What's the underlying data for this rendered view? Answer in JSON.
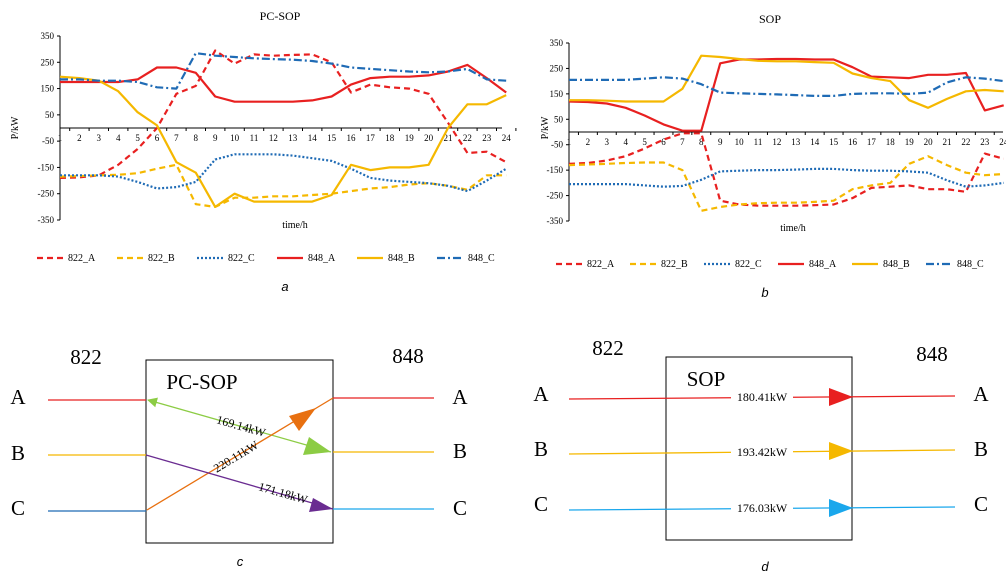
{
  "colors": {
    "red": "#e82020",
    "orange_yellow": "#f5b800",
    "blue": "#1f6bb5",
    "cyan": "#1aa7ec",
    "green": "#8ccc44",
    "purple": "#6a2c91",
    "dark_orange": "#e87010"
  },
  "chart_data": [
    {
      "type": "line",
      "title": "PC-SOP",
      "xlabel": "time/h",
      "ylabel": "P/kW",
      "ylim": [
        -350,
        350
      ],
      "yticks": [
        "350",
        "250",
        "150",
        "50",
        "-50",
        "-150",
        "-250",
        "-350"
      ],
      "x": [
        1,
        2,
        3,
        4,
        5,
        6,
        7,
        8,
        9,
        10,
        11,
        12,
        13,
        14,
        15,
        16,
        17,
        18,
        19,
        20,
        21,
        22,
        23,
        24
      ],
      "series": [
        {
          "name": "822_A",
          "style": "dash",
          "color": "#e82020",
          "values": [
            -190,
            -188,
            -180,
            -140,
            -80,
            0,
            130,
            160,
            295,
            245,
            280,
            275,
            278,
            280,
            250,
            135,
            165,
            155,
            150,
            130,
            20,
            -95,
            -90,
            -130
          ]
        },
        {
          "name": "822_B",
          "style": "dash",
          "color": "#f5b800",
          "values": [
            -185,
            -183,
            -180,
            -178,
            -172,
            -155,
            -140,
            -290,
            -300,
            -265,
            -265,
            -260,
            -260,
            -255,
            -250,
            -240,
            -230,
            -225,
            -215,
            -210,
            -220,
            -235,
            -180,
            -180
          ]
        },
        {
          "name": "822_C",
          "style": "dot",
          "color": "#1f6bb5",
          "values": [
            -180,
            -180,
            -180,
            -185,
            -205,
            -230,
            -225,
            -205,
            -120,
            -100,
            -100,
            -100,
            -105,
            -115,
            -125,
            -155,
            -190,
            -200,
            -205,
            -210,
            -220,
            -240,
            -200,
            -155
          ]
        },
        {
          "name": "848_A",
          "style": "solid",
          "color": "#e82020",
          "values": [
            175,
            175,
            175,
            175,
            185,
            230,
            230,
            210,
            120,
            100,
            100,
            100,
            100,
            105,
            120,
            165,
            190,
            195,
            195,
            200,
            215,
            240,
            190,
            135
          ]
        },
        {
          "name": "848_B",
          "style": "solid",
          "color": "#f5b800",
          "values": [
            195,
            190,
            180,
            140,
            60,
            10,
            -130,
            -170,
            -300,
            -250,
            -280,
            -280,
            -280,
            -280,
            -255,
            -140,
            -160,
            -150,
            -150,
            -140,
            0,
            90,
            90,
            125
          ]
        },
        {
          "name": "848_C",
          "style": "dashdot",
          "color": "#1f6bb5",
          "values": [
            185,
            185,
            180,
            180,
            175,
            155,
            150,
            285,
            275,
            270,
            265,
            262,
            260,
            255,
            245,
            230,
            225,
            220,
            215,
            212,
            215,
            225,
            185,
            180
          ]
        }
      ]
    },
    {
      "type": "line",
      "title": "SOP",
      "xlabel": "time/h",
      "ylabel": "P/kW",
      "ylim": [
        -350,
        350
      ],
      "yticks": [
        "350",
        "250",
        "150",
        "50",
        "-50",
        "-150",
        "-250",
        "-350"
      ],
      "x": [
        1,
        2,
        3,
        4,
        5,
        6,
        7,
        8,
        9,
        10,
        11,
        12,
        13,
        14,
        15,
        16,
        17,
        18,
        19,
        20,
        21,
        22,
        23,
        24
      ],
      "series": [
        {
          "name": "822_A",
          "style": "dash",
          "color": "#e82020",
          "values": [
            -125,
            -122,
            -112,
            -95,
            -65,
            -30,
            -5,
            -5,
            -270,
            -285,
            -290,
            -290,
            -290,
            -288,
            -285,
            -260,
            -220,
            -215,
            -210,
            -225,
            -225,
            -235,
            -85,
            -105
          ]
        },
        {
          "name": "822_B",
          "style": "dash",
          "color": "#f5b800",
          "values": [
            -130,
            -128,
            -125,
            -122,
            -120,
            -120,
            -150,
            -310,
            -295,
            -285,
            -280,
            -278,
            -278,
            -275,
            -270,
            -225,
            -210,
            -200,
            -125,
            -95,
            -130,
            -160,
            -170,
            -165
          ]
        },
        {
          "name": "822_C",
          "style": "dot",
          "color": "#1f6bb5",
          "values": [
            -205,
            -205,
            -205,
            -205,
            -210,
            -215,
            -212,
            -188,
            -155,
            -152,
            -150,
            -150,
            -148,
            -145,
            -145,
            -150,
            -152,
            -152,
            -155,
            -160,
            -190,
            -215,
            -210,
            -200
          ]
        },
        {
          "name": "848_A",
          "style": "solid",
          "color": "#e82020",
          "values": [
            120,
            118,
            112,
            95,
            65,
            30,
            5,
            5,
            270,
            285,
            285,
            287,
            287,
            285,
            285,
            255,
            218,
            215,
            212,
            225,
            225,
            232,
            85,
            105
          ]
        },
        {
          "name": "848_B",
          "style": "solid",
          "color": "#f5b800",
          "values": [
            125,
            125,
            123,
            120,
            120,
            120,
            170,
            300,
            295,
            287,
            280,
            278,
            278,
            275,
            272,
            230,
            212,
            200,
            125,
            95,
            130,
            160,
            165,
            160
          ]
        },
        {
          "name": "848_C",
          "style": "dashdot",
          "color": "#1f6bb5",
          "values": [
            205,
            205,
            205,
            205,
            210,
            215,
            210,
            188,
            155,
            152,
            150,
            148,
            145,
            142,
            142,
            150,
            152,
            152,
            150,
            155,
            195,
            215,
            210,
            200
          ]
        }
      ]
    }
  ],
  "captions": {
    "a": "a",
    "b": "b",
    "c": "c",
    "d": "d"
  },
  "diagram_c": {
    "label_left": "822",
    "label_right": "848",
    "box_label": "PC-SOP",
    "phases_left": [
      "A",
      "B",
      "C"
    ],
    "phases_right": [
      "A",
      "B",
      "C"
    ],
    "flows": [
      {
        "value": "169.14kW",
        "from": "822_A",
        "to": "848_B",
        "color": "#8ccc44",
        "bidirectional": true
      },
      {
        "value": "220.11kW",
        "from": "822_C",
        "to": "848_A",
        "color": "#e87010"
      },
      {
        "value": "171.18kW",
        "from": "822_B",
        "to": "848_C",
        "color": "#6a2c91"
      }
    ]
  },
  "diagram_d": {
    "label_left": "822",
    "label_right": "848",
    "box_label": "SOP",
    "phases_left": [
      "A",
      "B",
      "C"
    ],
    "phases_right": [
      "A",
      "B",
      "C"
    ],
    "flows": [
      {
        "value": "180.41kW",
        "phase": "A",
        "color": "#e82020"
      },
      {
        "value": "193.42kW",
        "phase": "B",
        "color": "#f5b800"
      },
      {
        "value": "176.03kW",
        "phase": "C",
        "color": "#1aa7ec"
      }
    ]
  }
}
